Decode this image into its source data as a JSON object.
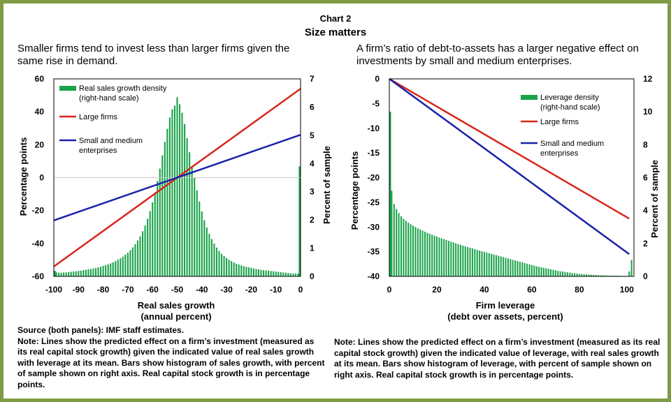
{
  "header": {
    "chart_number": "Chart 2",
    "title": "Size matters"
  },
  "chart_data": [
    {
      "type": "bar+line",
      "subtitle": "Smaller firms tend to invest less than larger firms given the same rise in demand.",
      "xlabel": "Real sales growth",
      "xlabel2": "(annual percent)",
      "ylabel_left": "Percentage points",
      "ylabel_right": "Percent of sample",
      "xlim": [
        -100,
        0
      ],
      "ylim_left": [
        -60,
        60
      ],
      "ylim_right": [
        0,
        7
      ],
      "x_ticks": [
        "-100",
        "-90",
        "-80",
        "-70",
        "-60",
        "-50",
        "-40",
        "-30",
        "-20",
        "-10",
        "0"
      ],
      "y_ticks_left": [
        "60",
        "40",
        "20",
        "0",
        "-20",
        "-40",
        "-60"
      ],
      "y_ticks_right": [
        "7",
        "6",
        "5",
        "4",
        "3",
        "2",
        "1",
        "0"
      ],
      "grid": false,
      "zero_line": true,
      "legend_position": "top-left",
      "legend": {
        "density_line1": "Real sales growth density",
        "density_line2": "(right-hand scale)",
        "large": "Large firms",
        "sme_line1": "Small and medium",
        "sme_line2": "enterprises"
      },
      "colors": {
        "density": "#1aa34a",
        "large": "#d9261c",
        "sme": "#1a22a8"
      },
      "lines": [
        {
          "name": "Large firms",
          "x": [
            -100,
            0
          ],
          "y": [
            -54,
            54
          ]
        },
        {
          "name": "Small and medium enterprises",
          "x": [
            -100,
            0
          ],
          "y": [
            -26,
            26
          ]
        }
      ],
      "density": {
        "name": "Real sales growth density (right-hand scale)",
        "x": [
          -100,
          -99,
          -98,
          -97,
          -96,
          -95,
          -94,
          -93,
          -92,
          -91,
          -90,
          -89,
          -88,
          -87,
          -86,
          -85,
          -84,
          -83,
          -82,
          -81,
          -80,
          -79,
          -78,
          -77,
          -76,
          -75,
          -74,
          -73,
          -72,
          -71,
          -70,
          -69,
          -68,
          -67,
          -66,
          -65,
          -64,
          -63,
          -62,
          -61,
          -60,
          -59,
          -58,
          -57,
          -56,
          -55,
          -54,
          -53,
          -52,
          -51,
          -50,
          -49,
          -48,
          -47,
          -46,
          -45,
          -44,
          -43,
          -42,
          -41,
          -40,
          -39,
          -38,
          -37,
          -36,
          -35,
          -34,
          -33,
          -32,
          -31,
          -30,
          -29,
          -28,
          -27,
          -26,
          -25,
          -24,
          -23,
          -22,
          -21,
          -20,
          -19,
          -18,
          -17,
          -16,
          -15,
          -14,
          -13,
          -12,
          -11,
          -10,
          -9,
          -8,
          -7,
          -6,
          -5,
          -4,
          -3,
          -2,
          -1,
          0
        ],
        "values": [
          0.2,
          0.15,
          0.13,
          0.13,
          0.14,
          0.14,
          0.15,
          0.16,
          0.17,
          0.18,
          0.19,
          0.2,
          0.22,
          0.23,
          0.25,
          0.26,
          0.28,
          0.3,
          0.32,
          0.34,
          0.37,
          0.4,
          0.43,
          0.46,
          0.5,
          0.54,
          0.59,
          0.64,
          0.7,
          0.77,
          0.84,
          0.93,
          1.03,
          1.14,
          1.27,
          1.42,
          1.6,
          1.8,
          2.04,
          2.31,
          2.62,
          2.98,
          3.38,
          3.82,
          4.29,
          4.77,
          5.23,
          5.63,
          5.92,
          6.05,
          6.35,
          6.1,
          5.8,
          5.4,
          4.9,
          4.4,
          3.9,
          3.5,
          3.05,
          2.65,
          2.3,
          1.99,
          1.73,
          1.51,
          1.32,
          1.16,
          1.02,
          0.9,
          0.8,
          0.72,
          0.65,
          0.59,
          0.54,
          0.49,
          0.45,
          0.42,
          0.39,
          0.36,
          0.34,
          0.32,
          0.3,
          0.28,
          0.26,
          0.25,
          0.23,
          0.22,
          0.21,
          0.2,
          0.19,
          0.18,
          0.17,
          0.16,
          0.15,
          0.14,
          0.13,
          0.12,
          0.11,
          0.1,
          0.1,
          0.1,
          3.9
        ]
      }
    },
    {
      "type": "bar+line",
      "subtitle": "A firm’s ratio of debt-to-assets has a larger negative effect on investments  by small and medium enterprises.",
      "xlabel": "Firm leverage",
      "xlabel2": "(debt over assets, percent)",
      "ylabel_left": "Percentage points",
      "ylabel_right": "Percent of sample",
      "xlim": [
        0,
        103
      ],
      "ylim_left": [
        -40,
        0
      ],
      "ylim_right": [
        0,
        12
      ],
      "x_ticks": [
        "0",
        "20",
        "40",
        "60",
        "80",
        "100"
      ],
      "x_tick_values": [
        0,
        20,
        40,
        60,
        80,
        100
      ],
      "y_ticks_left": [
        "0",
        "-5",
        "-10",
        "-15",
        "-20",
        "-25",
        "-30",
        "-35",
        "-40"
      ],
      "y_ticks_right": [
        "12",
        "10",
        "8",
        "6",
        "4",
        "2",
        "0"
      ],
      "grid": false,
      "legend_position": "top-right",
      "legend": {
        "density_line1": "Leverage density",
        "density_line2": "(right-hand scale)",
        "large": "Large firms",
        "sme_line1": "Small and medium",
        "sme_line2": "enterprises"
      },
      "colors": {
        "density": "#1aa34a",
        "large": "#d9261c",
        "sme": "#1a22a8"
      },
      "lines": [
        {
          "name": "Large firms",
          "x": [
            0,
            101
          ],
          "y": [
            0,
            -28.3
          ]
        },
        {
          "name": "Small and medium enterprises",
          "x": [
            0,
            101
          ],
          "y": [
            0,
            -35.5
          ]
        }
      ],
      "density": {
        "name": "Leverage density (right-hand scale)",
        "x": [
          0,
          1,
          2,
          3,
          4,
          5,
          6,
          7,
          8,
          9,
          10,
          11,
          12,
          13,
          14,
          15,
          16,
          17,
          18,
          19,
          20,
          21,
          22,
          23,
          24,
          25,
          26,
          27,
          28,
          29,
          30,
          31,
          32,
          33,
          34,
          35,
          36,
          37,
          38,
          39,
          40,
          41,
          42,
          43,
          44,
          45,
          46,
          47,
          48,
          49,
          50,
          51,
          52,
          53,
          54,
          55,
          56,
          57,
          58,
          59,
          60,
          61,
          62,
          63,
          64,
          65,
          66,
          67,
          68,
          69,
          70,
          71,
          72,
          73,
          74,
          75,
          76,
          77,
          78,
          79,
          80,
          81,
          82,
          83,
          84,
          85,
          86,
          87,
          88,
          89,
          90,
          91,
          92,
          93,
          94,
          95,
          96,
          97,
          98,
          99,
          100,
          101,
          102
        ],
        "values": [
          10,
          5.2,
          4.4,
          4.1,
          3.85,
          3.65,
          3.5,
          3.38,
          3.27,
          3.17,
          3.08,
          3.0,
          2.92,
          2.85,
          2.78,
          2.71,
          2.65,
          2.59,
          2.53,
          2.47,
          2.42,
          2.36,
          2.31,
          2.26,
          2.21,
          2.16,
          2.11,
          2.06,
          2.01,
          1.96,
          1.92,
          1.87,
          1.83,
          1.78,
          1.74,
          1.7,
          1.65,
          1.61,
          1.57,
          1.53,
          1.49,
          1.45,
          1.41,
          1.37,
          1.33,
          1.29,
          1.25,
          1.21,
          1.17,
          1.13,
          1.09,
          1.05,
          1.01,
          0.97,
          0.93,
          0.89,
          0.85,
          0.81,
          0.77,
          0.73,
          0.69,
          0.65,
          0.61,
          0.58,
          0.55,
          0.52,
          0.49,
          0.46,
          0.43,
          0.4,
          0.37,
          0.34,
          0.31,
          0.29,
          0.27,
          0.25,
          0.23,
          0.21,
          0.19,
          0.17,
          0.15,
          0.14,
          0.13,
          0.12,
          0.11,
          0.1,
          0.09,
          0.08,
          0.07,
          0.07,
          0.06,
          0.06,
          0.05,
          0.05,
          0.04,
          0.04,
          0.04,
          0.03,
          0.03,
          0.03,
          0.03,
          0.3,
          1.0
        ]
      }
    }
  ],
  "notes": {
    "left_source": "Source (both panels): IMF staff estimates.",
    "left_note": "Note: Lines show the predicted effect on a firm’s investment (measured as its real capital stock growth) given the indicated value of real sales growth with leverage at its mean. Bars show histogram of sales growth, with percent of sample shown on right axis. Real capital stock growth is in percentage points.",
    "right_note": "Note: Lines show the predicted effect on a firm’s investment (measured as its real capital stock growth) given the indicated value of leverage, with real sales growth at its mean. Bars show histogram of leverage, with percent of sample shown on right axis. Real capital stock growth is in percentage points."
  }
}
